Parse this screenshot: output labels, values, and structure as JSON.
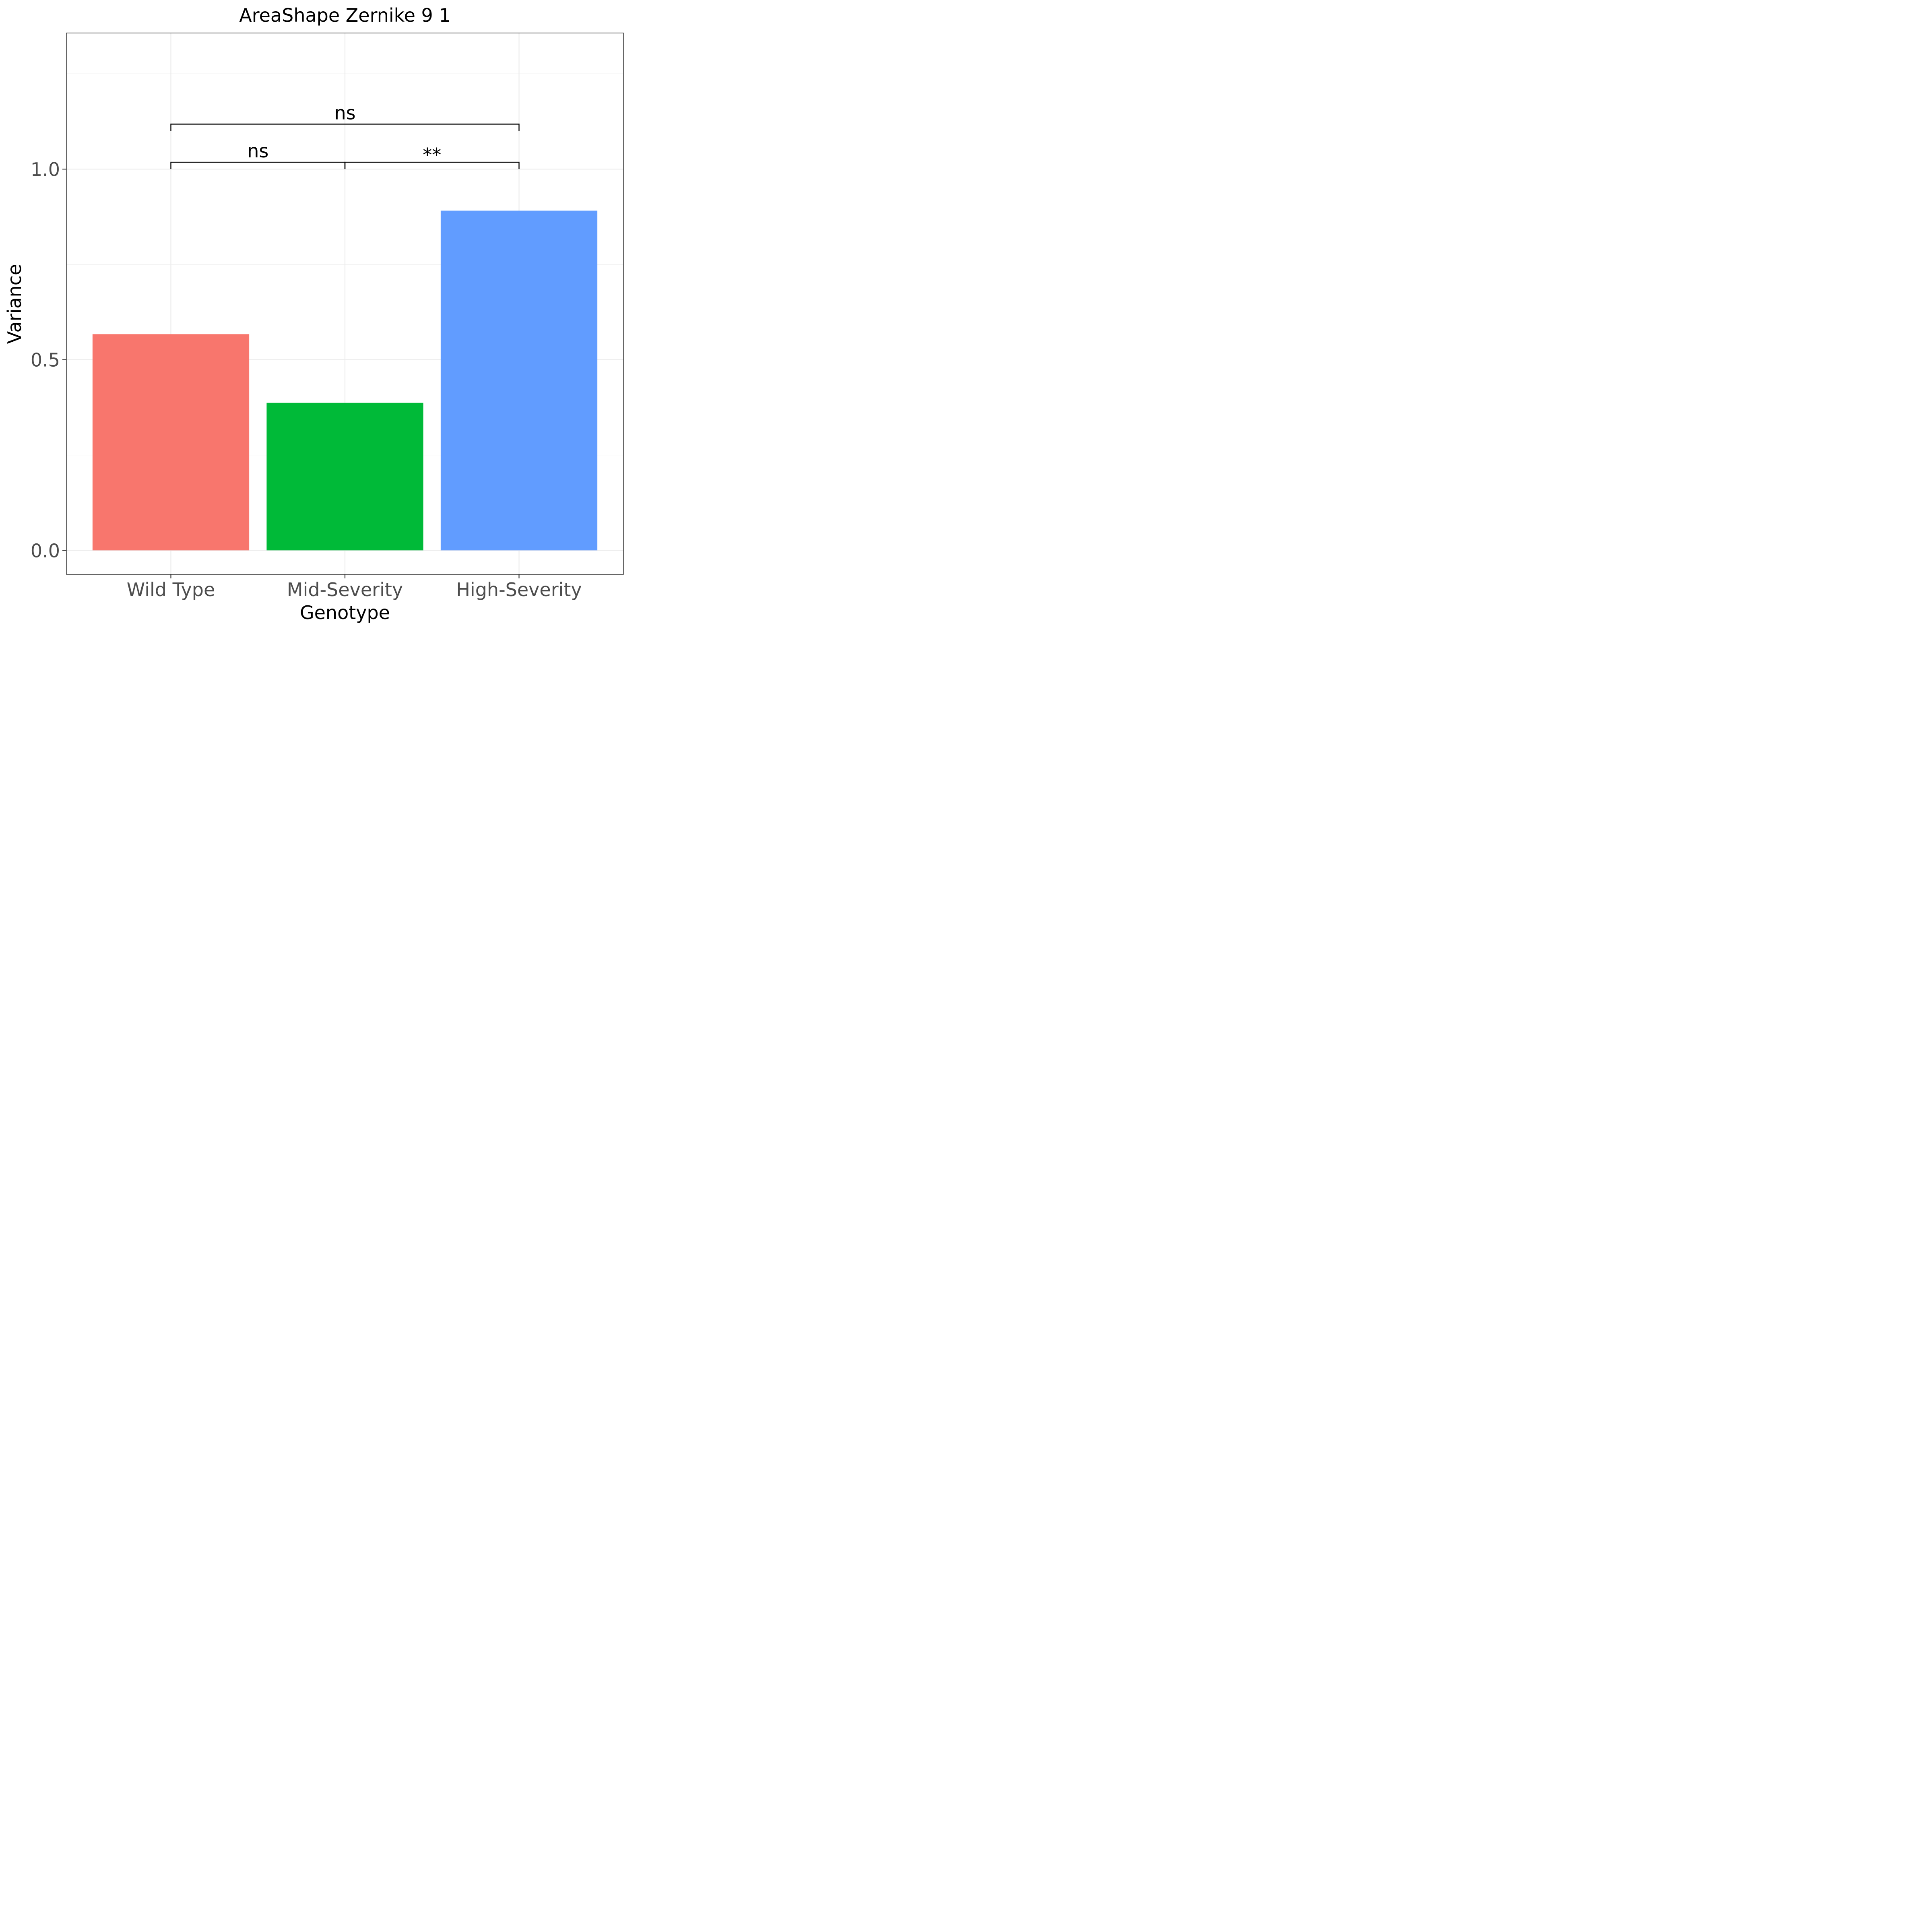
{
  "chart_data": {
    "type": "bar",
    "title": "AreaShape Zernike 9 1",
    "xlabel": "Genotype",
    "ylabel": "Variance",
    "categories": [
      "Wild Type",
      "Mid-Severity",
      "High-Severity"
    ],
    "values": [
      0.567,
      0.387,
      0.891
    ],
    "colors": [
      "#F8766D",
      "#00BA38",
      "#619CFF"
    ],
    "ylim": [
      -0.063,
      1.357
    ],
    "yticks": [
      0.0,
      0.5,
      1.0
    ],
    "ytick_labels": [
      "0.0",
      "0.5",
      "1.0"
    ],
    "minor_yticks": [
      0.25,
      0.75,
      1.25
    ],
    "grid": true,
    "legend": "none",
    "significance": [
      {
        "from": 0,
        "to": 1,
        "label": "ns",
        "y": 1.018,
        "tip": 0.018
      },
      {
        "from": 1,
        "to": 2,
        "label": "**",
        "y": 1.018,
        "tip": 0.018
      },
      {
        "from": 0,
        "to": 2,
        "label": "ns",
        "y": 1.118,
        "tip": 0.018
      }
    ]
  }
}
